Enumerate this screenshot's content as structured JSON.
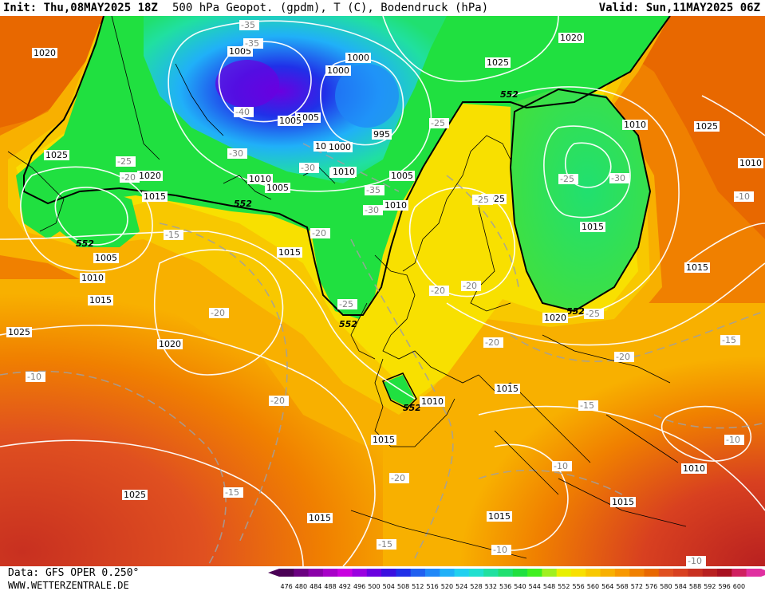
{
  "header": {
    "init": "Init: Thu,08MAY2025 18Z",
    "title": "500 hPa Geopot. (gpdm), T (C), Bodendruck (hPa)",
    "valid": "Valid: Sun,11MAY2025 06Z"
  },
  "footer": {
    "source": "Data: GFS OPER 0.250°",
    "site": "WWW.WETTERZENTRALE.DE"
  },
  "legend": {
    "values": [
      "476",
      "480",
      "484",
      "488",
      "492",
      "496",
      "500",
      "504",
      "508",
      "512",
      "516",
      "520",
      "524",
      "528",
      "532",
      "536",
      "540",
      "544",
      "548",
      "552",
      "556",
      "560",
      "564",
      "568",
      "572",
      "576",
      "580",
      "584",
      "588",
      "592",
      "596",
      "600"
    ],
    "colors": [
      "#4a0055",
      "#6a0080",
      "#8a00a8",
      "#a800c8",
      "#c800e0",
      "#9a00e0",
      "#6a00e0",
      "#3a10e0",
      "#2030e8",
      "#2060f0",
      "#2088f8",
      "#20b0f8",
      "#20d0f0",
      "#20e0d0",
      "#20e0a0",
      "#20e070",
      "#20e040",
      "#40f020",
      "#a0f020",
      "#e8f000",
      "#f8e000",
      "#f8c800",
      "#f8b000",
      "#f89800",
      "#f08000",
      "#e86800",
      "#e05020",
      "#d84020",
      "#c83020",
      "#b82020",
      "#a81020",
      "#d02060",
      "#e030a0"
    ]
  },
  "map": {
    "contour_552": "552",
    "pressure_labels": [
      "1020",
      "1025",
      "1005",
      "1000",
      "1000",
      "1005",
      "995",
      "1020",
      "1025",
      "1025",
      "1020",
      "1015",
      "1010",
      "1010",
      "1005",
      "1005",
      "1000",
      "1010",
      "1005",
      "1010",
      "1000",
      "1010",
      "1010",
      "1015",
      "552",
      "552",
      "1015",
      "1025",
      "1015",
      "552",
      "552",
      "1005",
      "1010",
      "1015",
      "1025",
      "1020",
      "1010",
      "1015",
      "1015",
      "1025",
      "1015",
      "1015",
      "1015",
      "1010",
      "1020"
    ],
    "temp_labels": [
      "-35",
      "-35",
      "-40",
      "-30",
      "-25",
      "-25",
      "-30",
      "-35",
      "-30",
      "-20",
      "-25",
      "-20",
      "-15",
      "-20",
      "-25",
      "-20",
      "-20",
      "-20",
      "-15",
      "-20",
      "-20",
      "-15",
      "-10",
      "-10",
      "-15",
      "-20",
      "-10",
      "-15",
      "-10",
      "-10",
      "-20",
      "-30",
      "-25",
      "-25",
      "-10"
    ]
  }
}
